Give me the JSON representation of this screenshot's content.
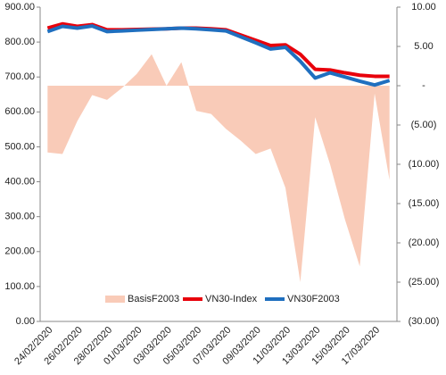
{
  "chart_data": {
    "type": "combo",
    "categories": [
      "24/02/2020",
      null,
      "26/02/2020",
      null,
      "28/02/2020",
      null,
      "01/03/2020",
      null,
      "03/03/2020",
      null,
      "05/03/2020",
      null,
      "07/03/2020",
      null,
      "09/03/2020",
      null,
      "11/03/2020",
      null,
      "13/03/2020",
      null,
      "15/03/2020",
      null,
      "17/03/2020",
      null
    ],
    "series": [
      {
        "name": "BasisF2003",
        "type": "area",
        "axis": "y2",
        "color": "#f9cbb8",
        "values": [
          -8.5,
          -8.7,
          -4.5,
          -1.2,
          -1.8,
          -0.3,
          1.5,
          4,
          0,
          3,
          -3.2,
          -3.6,
          -5.5,
          -7,
          -8.7,
          -8,
          -13,
          -25,
          -4,
          -10,
          -17,
          -23,
          -1,
          -12
        ]
      },
      {
        "name": "VN30-Index",
        "type": "line",
        "axis": "y",
        "color": "#e8000b",
        "values": [
          840,
          852,
          845,
          850,
          835,
          835,
          836,
          837,
          838,
          840,
          840,
          838,
          835,
          820,
          805,
          790,
          792,
          765,
          722,
          720,
          712,
          705,
          702,
          702
        ]
      },
      {
        "name": "VN30F2003",
        "type": "line",
        "axis": "y",
        "color": "#1f6fbf",
        "values": [
          830,
          845,
          840,
          846,
          830,
          832,
          834,
          836,
          838,
          840,
          838,
          835,
          832,
          815,
          798,
          780,
          785,
          745,
          697,
          712,
          700,
          688,
          677,
          690
        ]
      }
    ],
    "ylim": [
      0,
      900
    ],
    "yticks": [
      {
        "value": 0,
        "label": "0.00"
      },
      {
        "value": 100,
        "label": "100.00"
      },
      {
        "value": 200,
        "label": "200.00"
      },
      {
        "value": 300,
        "label": "300.00"
      },
      {
        "value": 400,
        "label": "400.00"
      },
      {
        "value": 500,
        "label": "500.00"
      },
      {
        "value": 600,
        "label": "600.00"
      },
      {
        "value": 700,
        "label": "700.00"
      },
      {
        "value": 800,
        "label": "800.00"
      },
      {
        "value": 900,
        "label": "900.00"
      }
    ],
    "y2lim": [
      -30,
      10
    ],
    "y2ticks": [
      {
        "value": 10,
        "label": "10.00"
      },
      {
        "value": 5,
        "label": "5.00"
      },
      {
        "value": 0,
        "label": "-"
      },
      {
        "value": -5,
        "label": "(5.00)"
      },
      {
        "value": -10,
        "label": "(10.00)"
      },
      {
        "value": -15,
        "label": "(15.00)"
      },
      {
        "value": -20,
        "label": "(20.00)"
      },
      {
        "value": -25,
        "label": "(25.00)"
      },
      {
        "value": -30,
        "label": "(30.00)"
      }
    ],
    "legend": "bottom"
  }
}
